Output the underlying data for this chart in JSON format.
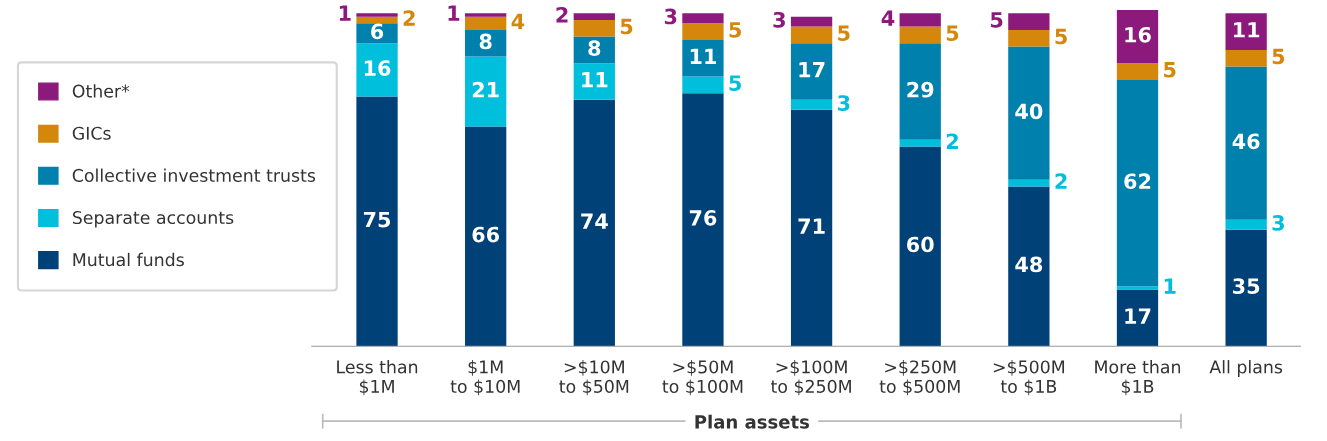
{
  "chart_data": {
    "type": "bar",
    "stacked": true,
    "data_labels": true,
    "legend": "left",
    "grid": false,
    "tick_labels": "x",
    "categories": [
      "Less than\n$1M",
      "$1M\nto $10M",
      ">$10M\nto $50M",
      ">$50M\nto $100M",
      ">$100M\nto $250M",
      ">$250M\nto $500M",
      ">$500M\nto $1B",
      "More than\n$1B",
      "All plans"
    ],
    "series": [
      {
        "name": "Mutual funds",
        "color": "#004178",
        "values": [
          75,
          66,
          74,
          76,
          71,
          60,
          48,
          17,
          35
        ]
      },
      {
        "name": "Separate accounts",
        "color": "#00bfdc",
        "values": [
          16,
          21,
          11,
          5,
          3,
          2,
          2,
          1,
          3
        ]
      },
      {
        "name": "Collective investment trusts",
        "color": "#0080ad",
        "values": [
          6,
          8,
          8,
          11,
          17,
          29,
          40,
          62,
          46
        ]
      },
      {
        "name": "GICs",
        "color": "#d4870b",
        "values": [
          2,
          4,
          5,
          5,
          5,
          5,
          5,
          5,
          5
        ]
      },
      {
        "name": "Other*",
        "color": "#8c1a7c",
        "values": [
          1,
          1,
          2,
          3,
          3,
          4,
          5,
          16,
          11
        ]
      }
    ],
    "annotations": [
      "Plan assets"
    ]
  }
}
